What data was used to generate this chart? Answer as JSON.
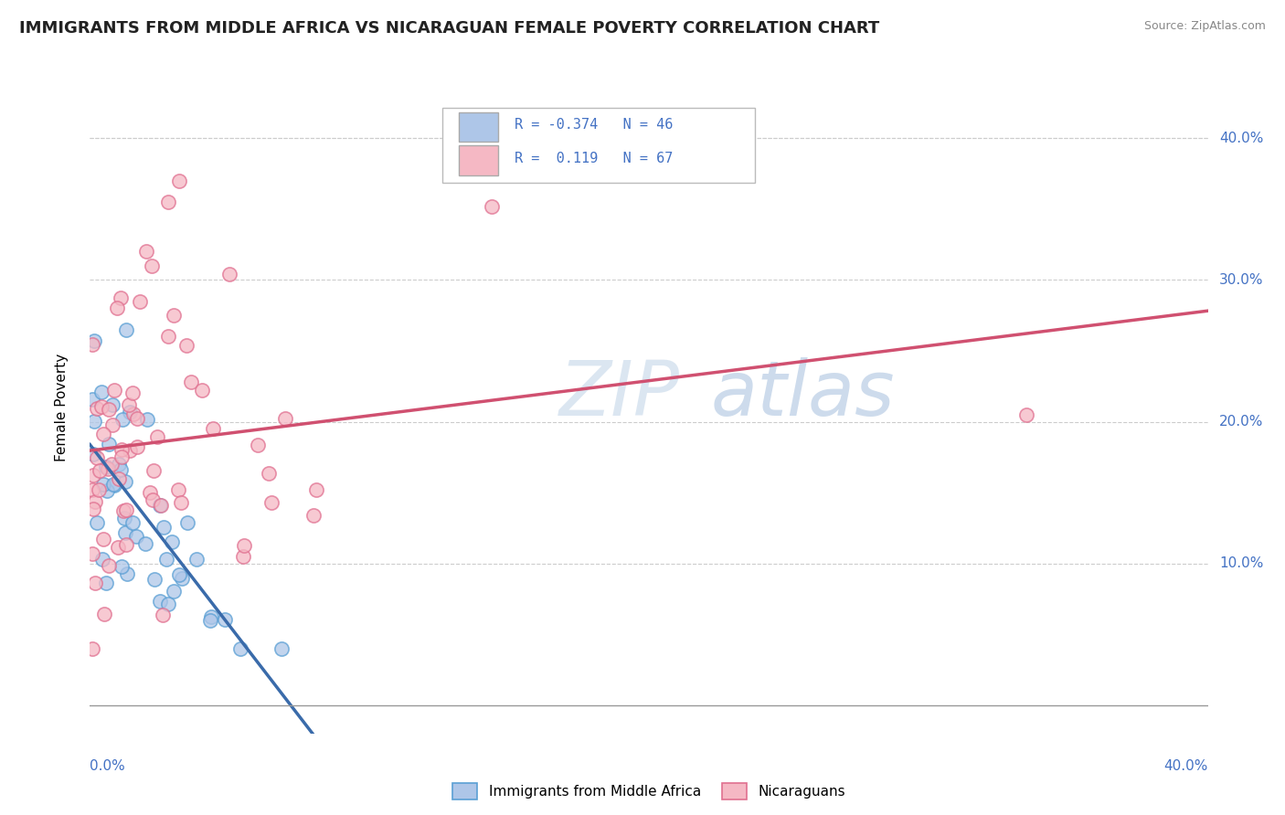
{
  "title": "IMMIGRANTS FROM MIDDLE AFRICA VS NICARAGUAN FEMALE POVERTY CORRELATION CHART",
  "source": "Source: ZipAtlas.com",
  "ylabel": "Female Poverty",
  "legend1_label": "Immigrants from Middle Africa",
  "legend2_label": "Nicaraguans",
  "r1": "-0.374",
  "n1": "46",
  "r2": "0.119",
  "n2": "67",
  "blue_fill": "#aec6e8",
  "blue_edge": "#5a9fd4",
  "pink_fill": "#f5b8c4",
  "pink_edge": "#e07090",
  "blue_line": "#3a6baa",
  "pink_line": "#d05070",
  "text_color": "#4472c4",
  "grid_color": "#cccccc",
  "watermark_color": "#d8e4f0"
}
